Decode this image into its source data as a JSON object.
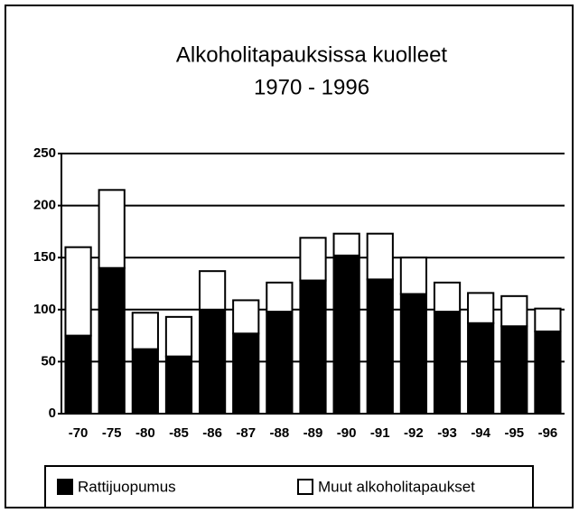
{
  "chart_data": {
    "type": "stacked_bar",
    "title": "Alkoholitapauksissa kuolleet",
    "subtitle": "1970 - 1996",
    "categories": [
      "-70",
      "-75",
      "-80",
      "-85",
      "-86",
      "-87",
      "-88",
      "-89",
      "-90",
      "-91",
      "-92",
      "-93",
      "-94",
      "-95",
      "-96"
    ],
    "series": [
      {
        "name": "Rattijuopumus",
        "color": "#000000",
        "values": [
          75,
          140,
          62,
          55,
          100,
          77,
          98,
          128,
          152,
          129,
          115,
          98,
          87,
          84,
          79
        ]
      },
      {
        "name": "Muut alkoholitapaukset",
        "color": "#ffffff",
        "values": [
          85,
          75,
          35,
          38,
          37,
          32,
          28,
          41,
          21,
          44,
          35,
          28,
          29,
          29,
          22
        ]
      }
    ],
    "ylim": [
      0,
      250
    ],
    "yticks": [
      0,
      50,
      100,
      150,
      200,
      250
    ],
    "grid": true,
    "legend": "bottom"
  }
}
